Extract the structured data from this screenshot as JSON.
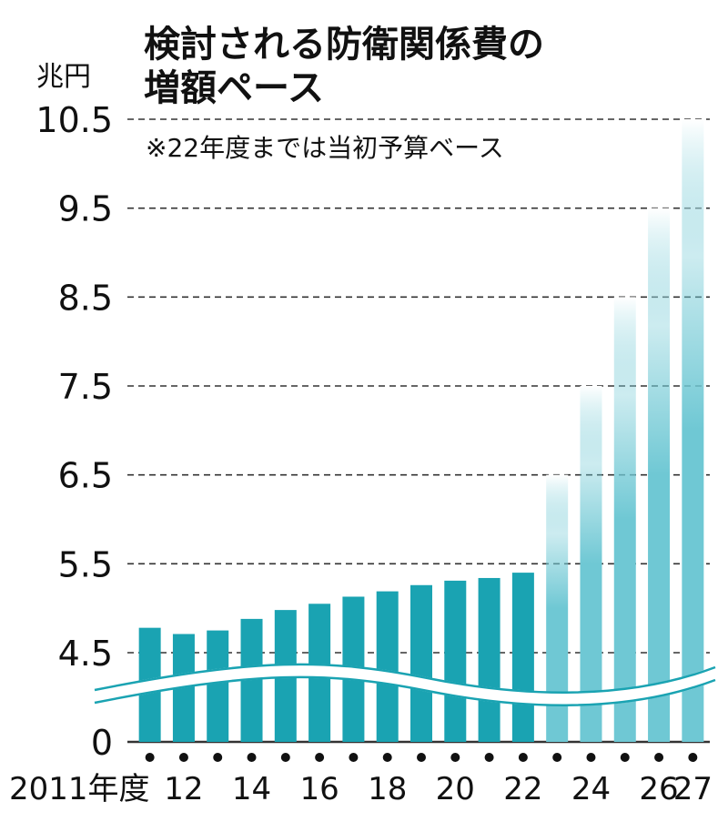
{
  "chart_data": {
    "type": "bar",
    "title_line1": "検討される防衛関係費の",
    "title_line2": "増額ペース",
    "note": "※22年度までは当初予算ベース",
    "unit": "兆円",
    "ylim": [
      0,
      10.5
    ],
    "y_ticks": [
      {
        "value": 10.5,
        "label": "10.5"
      },
      {
        "value": 9.5,
        "label": "9.5"
      },
      {
        "value": 8.5,
        "label": "8.5"
      },
      {
        "value": 7.5,
        "label": "7.5"
      },
      {
        "value": 6.5,
        "label": "6.5"
      },
      {
        "value": 5.5,
        "label": "5.5"
      },
      {
        "value": 4.5,
        "label": "4.5"
      },
      {
        "value": 0,
        "label": "0"
      }
    ],
    "axis_break": [
      0,
      4.5
    ],
    "categories": [
      "2011",
      "2012",
      "2013",
      "2014",
      "2015",
      "2016",
      "2017",
      "2018",
      "2019",
      "2020",
      "2021",
      "2022",
      "2023",
      "2024",
      "2025",
      "2026",
      "2027"
    ],
    "x_labels": [
      {
        "category": "2011",
        "label": "2011年度"
      },
      {
        "category": "2012",
        "label": "12"
      },
      {
        "category": "2014",
        "label": "14"
      },
      {
        "category": "2016",
        "label": "16"
      },
      {
        "category": "2018",
        "label": "18"
      },
      {
        "category": "2020",
        "label": "20"
      },
      {
        "category": "2022",
        "label": "22"
      },
      {
        "category": "2024",
        "label": "24"
      },
      {
        "category": "2026",
        "label": "26"
      },
      {
        "category": "2027",
        "label": "27"
      }
    ],
    "values": [
      4.78,
      4.71,
      4.75,
      4.88,
      4.98,
      5.05,
      5.13,
      5.19,
      5.26,
      5.31,
      5.34,
      5.4,
      6.5,
      7.5,
      8.5,
      9.5,
      10.5
    ],
    "styles": [
      "solid",
      "solid",
      "solid",
      "solid",
      "solid",
      "solid",
      "solid",
      "solid",
      "solid",
      "solid",
      "solid",
      "solid",
      "projected",
      "projected",
      "projected",
      "projected",
      "projected"
    ],
    "grid": "dashed-horizontal",
    "colors": {
      "solid": "#1AA3B2",
      "projected": "#6FC8D4",
      "grid": "#333333",
      "text": "#111111",
      "dot": "#111111"
    }
  }
}
